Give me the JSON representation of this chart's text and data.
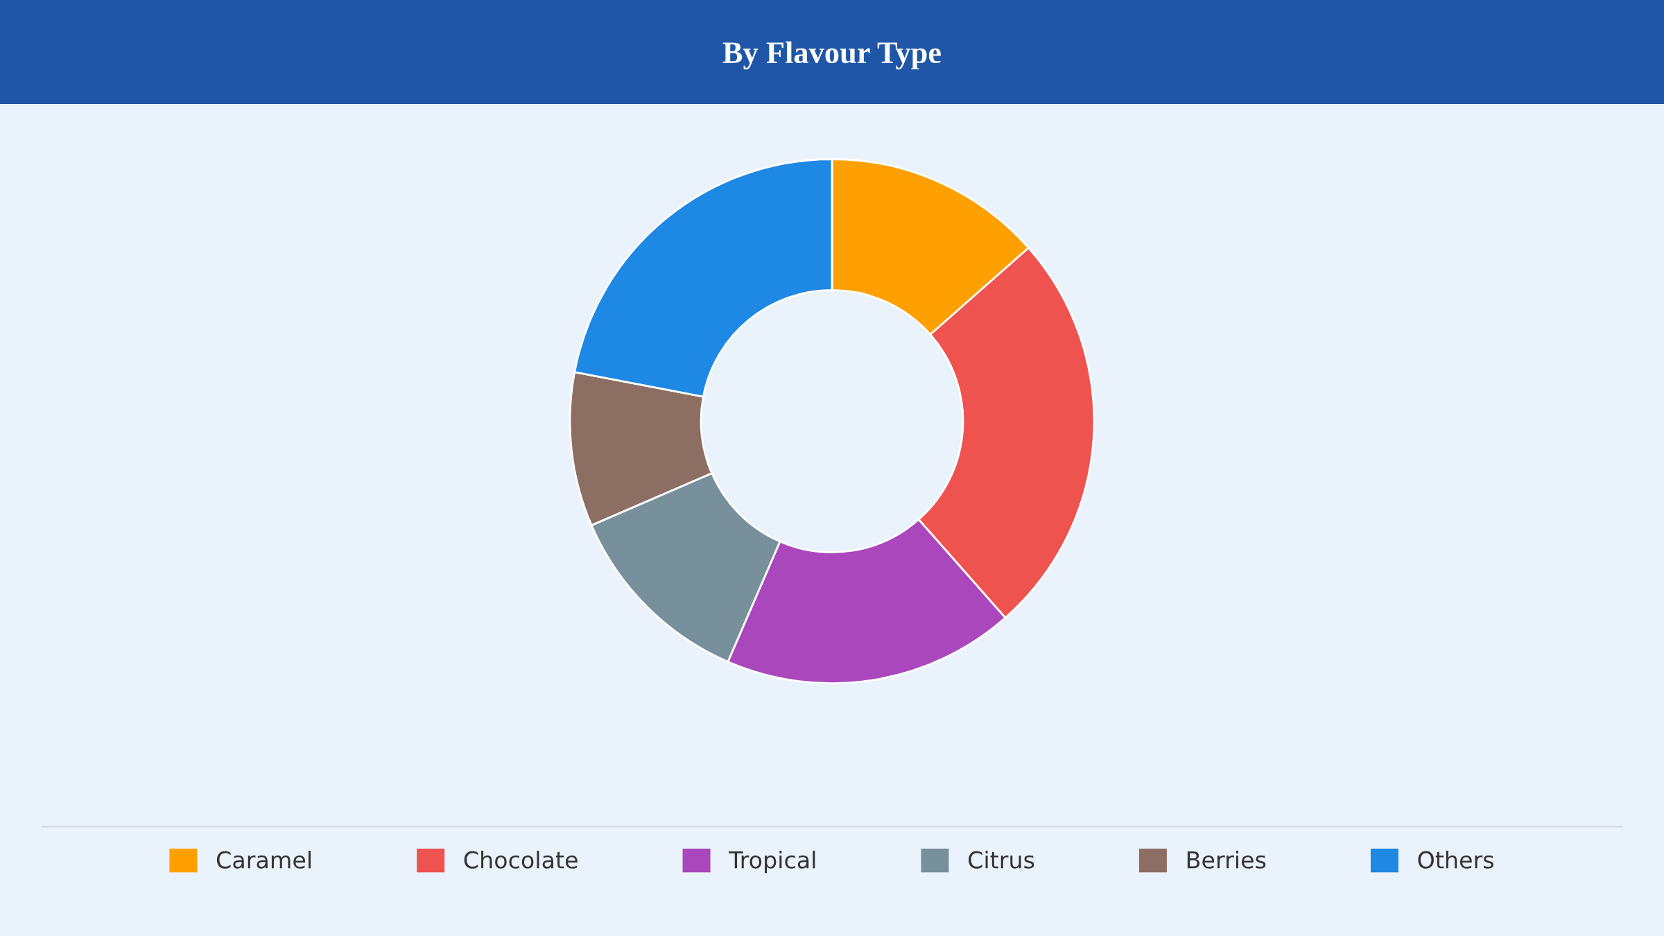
{
  "chart_data": {
    "type": "donut",
    "title": "By Flavour Type",
    "categories": [
      "Caramel",
      "Chocolate",
      "Tropical",
      "Citrus",
      "Berries",
      "Others"
    ],
    "values": [
      13.5,
      25,
      18,
      12,
      9.5,
      22
    ],
    "colors": [
      "#ffa000",
      "#ef5350",
      "#ab47bc",
      "#78909c",
      "#8d6e63",
      "#1e88e5"
    ],
    "legend": "bottom"
  }
}
